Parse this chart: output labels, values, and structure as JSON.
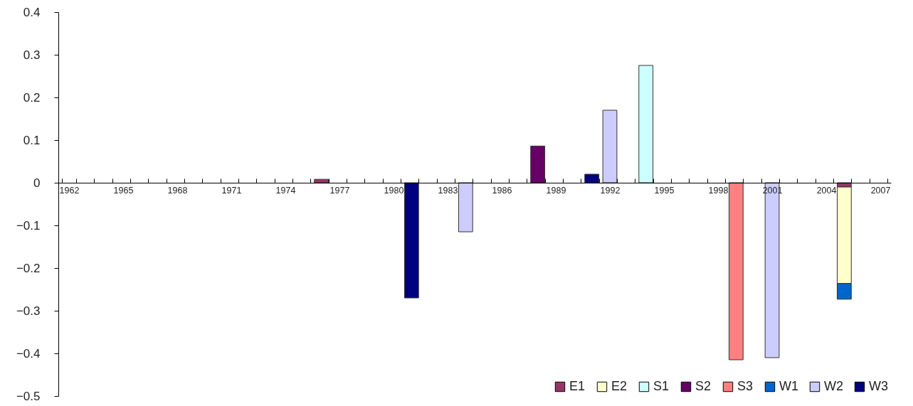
{
  "chart_data": {
    "type": "bar",
    "stacked": true,
    "categories": [
      "1962",
      null,
      null,
      "1965",
      null,
      null,
      "1968",
      null,
      null,
      "1971",
      null,
      null,
      "1974",
      null,
      null,
      "1977",
      null,
      null,
      "1980",
      null,
      null,
      "1983",
      null,
      null,
      "1986",
      null,
      null,
      "1989",
      null,
      null,
      "1992",
      null,
      null,
      "1995",
      null,
      null,
      "1998",
      null,
      null,
      "2001",
      null,
      null,
      "2004",
      null,
      null,
      "2007"
    ],
    "series": [
      {
        "name": "E1",
        "color": "#993366",
        "values": [
          null,
          null,
          null,
          null,
          null,
          null,
          null,
          null,
          null,
          null,
          null,
          null,
          null,
          null,
          0.008,
          null,
          null,
          null,
          null,
          null,
          null,
          null,
          null,
          null,
          null,
          null,
          null,
          null,
          null,
          null,
          null,
          null,
          null,
          null,
          null,
          null,
          null,
          null,
          null,
          null,
          null,
          null,
          null,
          -0.01,
          null,
          null
        ]
      },
      {
        "name": "E2",
        "color": "#ffffcc",
        "values": [
          null,
          null,
          null,
          null,
          null,
          null,
          null,
          null,
          null,
          null,
          null,
          null,
          null,
          null,
          null,
          null,
          null,
          null,
          null,
          null,
          null,
          null,
          null,
          null,
          null,
          null,
          null,
          null,
          null,
          null,
          null,
          null,
          null,
          null,
          null,
          null,
          null,
          null,
          null,
          null,
          null,
          null,
          null,
          -0.226,
          null,
          null
        ]
      },
      {
        "name": "S1",
        "color": "#ccffff",
        "values": [
          null,
          null,
          null,
          null,
          null,
          null,
          null,
          null,
          null,
          null,
          null,
          null,
          null,
          null,
          null,
          null,
          null,
          null,
          null,
          null,
          null,
          null,
          null,
          null,
          null,
          null,
          null,
          null,
          null,
          null,
          null,
          null,
          0.275,
          null,
          null,
          null,
          null,
          null,
          null,
          null,
          null,
          null,
          null,
          null,
          null,
          null
        ]
      },
      {
        "name": "S2",
        "color": "#660066",
        "values": [
          null,
          null,
          null,
          null,
          null,
          null,
          null,
          null,
          null,
          null,
          null,
          null,
          null,
          null,
          null,
          null,
          null,
          null,
          null,
          null,
          null,
          null,
          null,
          null,
          null,
          null,
          0.086,
          null,
          null,
          null,
          null,
          null,
          null,
          null,
          null,
          null,
          null,
          null,
          null,
          null,
          null,
          null,
          null,
          null,
          null,
          null
        ]
      },
      {
        "name": "S3",
        "color": "#ff8080",
        "values": [
          null,
          null,
          null,
          null,
          null,
          null,
          null,
          null,
          null,
          null,
          null,
          null,
          null,
          null,
          null,
          null,
          null,
          null,
          null,
          null,
          null,
          null,
          null,
          null,
          null,
          null,
          null,
          null,
          null,
          null,
          null,
          null,
          null,
          null,
          null,
          null,
          null,
          -0.415,
          null,
          null,
          null,
          null,
          null,
          null,
          null,
          null
        ]
      },
      {
        "name": "W1",
        "color": "#0066cc",
        "values": [
          null,
          null,
          null,
          null,
          null,
          null,
          null,
          null,
          null,
          null,
          null,
          null,
          null,
          null,
          null,
          null,
          null,
          null,
          null,
          null,
          null,
          null,
          null,
          null,
          null,
          null,
          null,
          null,
          null,
          null,
          null,
          null,
          null,
          null,
          null,
          null,
          null,
          null,
          null,
          null,
          null,
          null,
          null,
          -0.037,
          null,
          null
        ]
      },
      {
        "name": "W2",
        "color": "#ccccff",
        "values": [
          null,
          null,
          null,
          null,
          null,
          null,
          null,
          null,
          null,
          null,
          null,
          null,
          null,
          null,
          null,
          null,
          null,
          null,
          null,
          null,
          null,
          null,
          -0.115,
          null,
          null,
          null,
          null,
          null,
          null,
          null,
          0.17,
          null,
          null,
          null,
          null,
          null,
          null,
          null,
          null,
          -0.41,
          null,
          null,
          null,
          null,
          null,
          null
        ]
      },
      {
        "name": "W3",
        "color": "#000080",
        "values": [
          null,
          null,
          null,
          null,
          null,
          null,
          null,
          null,
          null,
          null,
          null,
          null,
          null,
          null,
          null,
          null,
          null,
          null,
          null,
          -0.27,
          null,
          null,
          null,
          null,
          null,
          null,
          null,
          null,
          null,
          0.02,
          null,
          null,
          null,
          null,
          null,
          null,
          null,
          null,
          null,
          null,
          null,
          null,
          null,
          null,
          null,
          null
        ]
      }
    ],
    "ylim": [
      -0.5,
      0.4
    ],
    "yticks": [
      -0.5,
      -0.4,
      -0.3,
      -0.2,
      -0.1,
      0,
      0.1,
      0.2,
      0.3,
      0.4
    ],
    "grid": false,
    "legend": "bottom right"
  }
}
